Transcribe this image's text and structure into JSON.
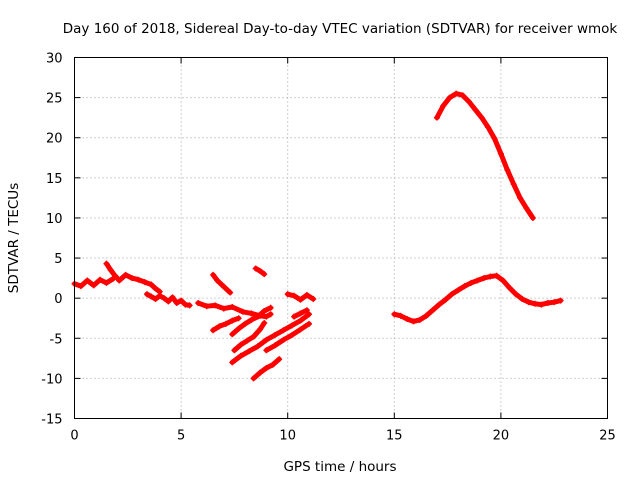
{
  "chart_data": {
    "type": "scatter",
    "title": "Day 160 of 2018, Sidereal Day-to-day VTEC variation (SDTVAR) for receiver wmok",
    "xlabel": "GPS time / hours",
    "ylabel": "SDTVAR / TECUs",
    "xlim": [
      0,
      25
    ],
    "ylim": [
      -15,
      30
    ],
    "xticks": [
      0,
      5,
      10,
      15,
      20,
      25
    ],
    "yticks": [
      -15,
      -10,
      -5,
      0,
      5,
      10,
      15,
      20,
      25,
      30
    ],
    "xtick_labels": [
      "0",
      "5",
      "10",
      "15",
      "20",
      "25"
    ],
    "ytick_labels": [
      "-15",
      "-10",
      "-5",
      "0",
      "5",
      "10",
      "15",
      "20",
      "25",
      "30"
    ],
    "grid": true,
    "legend": "none",
    "marker": "+",
    "color": "#ff0000",
    "series": [
      {
        "name": "seg-1",
        "x": [
          0.0,
          0.3,
          0.6,
          0.9,
          1.2,
          1.5,
          1.8
        ],
        "y": [
          1.8,
          1.5,
          2.2,
          1.6,
          2.3,
          1.9,
          2.4
        ]
      },
      {
        "name": "seg-2",
        "x": [
          1.5,
          1.7,
          1.9,
          2.1,
          2.4,
          2.7,
          3.0,
          3.3,
          3.6,
          3.8,
          4.0
        ],
        "y": [
          4.3,
          3.5,
          2.8,
          2.2,
          2.9,
          2.5,
          2.3,
          2.0,
          1.7,
          1.2,
          0.8
        ]
      },
      {
        "name": "seg-3",
        "x": [
          3.4,
          3.6,
          3.8,
          4.0,
          4.2,
          4.4,
          4.6,
          4.8,
          5.0,
          5.2,
          5.4
        ],
        "y": [
          0.5,
          0.2,
          -0.1,
          0.3,
          0.0,
          -0.4,
          0.1,
          -0.6,
          -0.3,
          -0.8,
          -0.9
        ]
      },
      {
        "name": "seg-4",
        "x": [
          5.8,
          6.2,
          6.6,
          7.0,
          7.4,
          7.9,
          8.3,
          8.7,
          9.0,
          9.2
        ],
        "y": [
          -0.6,
          -1.0,
          -0.9,
          -1.3,
          -1.1,
          -1.7,
          -1.9,
          -2.2,
          -2.3,
          -2.0
        ]
      },
      {
        "name": "seg-5",
        "x": [
          6.5,
          6.7,
          6.9,
          7.1,
          7.3
        ],
        "y": [
          2.9,
          2.2,
          1.7,
          1.2,
          0.7
        ]
      },
      {
        "name": "seg-6",
        "x": [
          8.5,
          8.7,
          8.9
        ],
        "y": [
          3.7,
          3.4,
          3.0
        ]
      },
      {
        "name": "seg-7",
        "x": [
          6.5,
          6.8,
          7.1,
          7.4,
          7.7
        ],
        "y": [
          -4.0,
          -3.5,
          -3.2,
          -2.8,
          -2.5
        ]
      },
      {
        "name": "seg-8",
        "x": [
          7.4,
          7.7,
          8.0,
          8.3,
          8.6,
          8.9,
          9.2
        ],
        "y": [
          -4.5,
          -3.8,
          -3.2,
          -2.7,
          -2.3,
          -1.6,
          -1.2
        ]
      },
      {
        "name": "seg-9",
        "x": [
          7.5,
          7.8,
          8.1,
          8.4,
          8.7,
          8.9
        ],
        "y": [
          -6.5,
          -5.8,
          -5.3,
          -4.8,
          -3.9,
          -3.1
        ]
      },
      {
        "name": "seg-10",
        "x": [
          7.4,
          7.8,
          8.2,
          8.6,
          9.0,
          9.4,
          9.8,
          10.2,
          10.6,
          11.0
        ],
        "y": [
          -8.0,
          -7.2,
          -6.6,
          -6.0,
          -5.2,
          -4.6,
          -4.0,
          -3.4,
          -2.8,
          -2.0
        ]
      },
      {
        "name": "seg-11",
        "x": [
          8.4,
          8.7,
          9.0,
          9.3,
          9.6
        ],
        "y": [
          -10.0,
          -9.3,
          -8.7,
          -8.3,
          -7.6
        ]
      },
      {
        "name": "seg-12",
        "x": [
          9.0,
          9.4,
          9.8,
          10.2,
          10.6,
          11.0
        ],
        "y": [
          -6.5,
          -5.9,
          -5.2,
          -4.6,
          -3.9,
          -3.2
        ]
      },
      {
        "name": "seg-13",
        "x": [
          10.0,
          10.3,
          10.6,
          10.9,
          11.2
        ],
        "y": [
          0.5,
          0.3,
          -0.2,
          0.4,
          -0.1
        ]
      },
      {
        "name": "seg-14",
        "x": [
          10.3,
          10.6,
          10.9
        ],
        "y": [
          -2.3,
          -1.9,
          -1.5
        ]
      },
      {
        "name": "seg-15",
        "x": [
          15.0,
          15.3,
          15.6,
          15.9,
          16.2,
          16.5,
          16.8,
          17.1,
          17.4,
          17.7,
          18.0,
          18.3,
          18.6,
          18.9,
          19.2,
          19.5,
          19.8,
          20.1,
          20.4,
          20.7,
          21.0,
          21.3,
          21.6,
          21.9,
          22.2,
          22.5,
          22.8
        ],
        "y": [
          -2.0,
          -2.2,
          -2.6,
          -2.9,
          -2.7,
          -2.2,
          -1.5,
          -0.8,
          -0.2,
          0.5,
          1.0,
          1.5,
          1.9,
          2.2,
          2.5,
          2.7,
          2.8,
          2.2,
          1.3,
          0.5,
          -0.1,
          -0.5,
          -0.7,
          -0.8,
          -0.6,
          -0.5,
          -0.3
        ]
      },
      {
        "name": "seg-16",
        "x": [
          17.0,
          17.3,
          17.6,
          17.9,
          18.2,
          18.5,
          18.8,
          19.1,
          19.4,
          19.7,
          20.0,
          20.3,
          20.6,
          20.9,
          21.2,
          21.5
        ],
        "y": [
          22.5,
          24.0,
          25.0,
          25.5,
          25.3,
          24.5,
          23.5,
          22.5,
          21.3,
          19.9,
          18.0,
          16.0,
          14.2,
          12.5,
          11.2,
          10.0
        ]
      }
    ]
  }
}
